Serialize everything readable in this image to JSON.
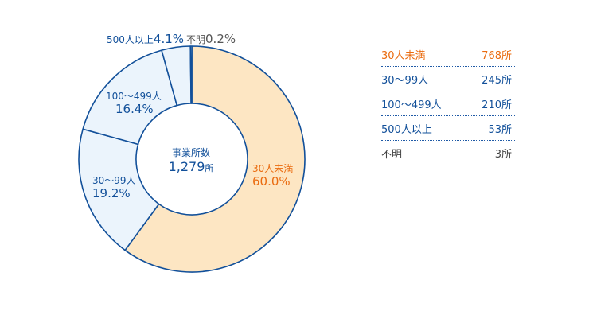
{
  "chart_data": {
    "type": "pie",
    "center": {
      "title": "事業所数",
      "value": "1,279",
      "unit": "所"
    },
    "slices": [
      {
        "name": "30人未満",
        "percent": 60.0,
        "percent_label": "60.0%",
        "count_label": "768所",
        "fill": "#fde6c3",
        "text_color": "#ea6b0f"
      },
      {
        "name": "30〜99人",
        "percent": 19.2,
        "percent_label": "19.2%",
        "count_label": "245所",
        "fill": "#ebf4fc",
        "text_color": "#12509a"
      },
      {
        "name": "100〜499人",
        "percent": 16.4,
        "percent_label": "16.4%",
        "count_label": "210所",
        "fill": "#ebf4fc",
        "text_color": "#12509a"
      },
      {
        "name": "500人以上",
        "percent": 4.1,
        "percent_label": "4.1%",
        "count_label": "53所",
        "fill": "#ebf4fc",
        "text_color": "#12509a"
      },
      {
        "name": "不明",
        "percent": 0.2,
        "percent_label": "0.2%",
        "count_label": "3所",
        "fill": "#ebf4fc",
        "text_color": "#444444"
      }
    ],
    "stroke_color": "#12509a"
  }
}
